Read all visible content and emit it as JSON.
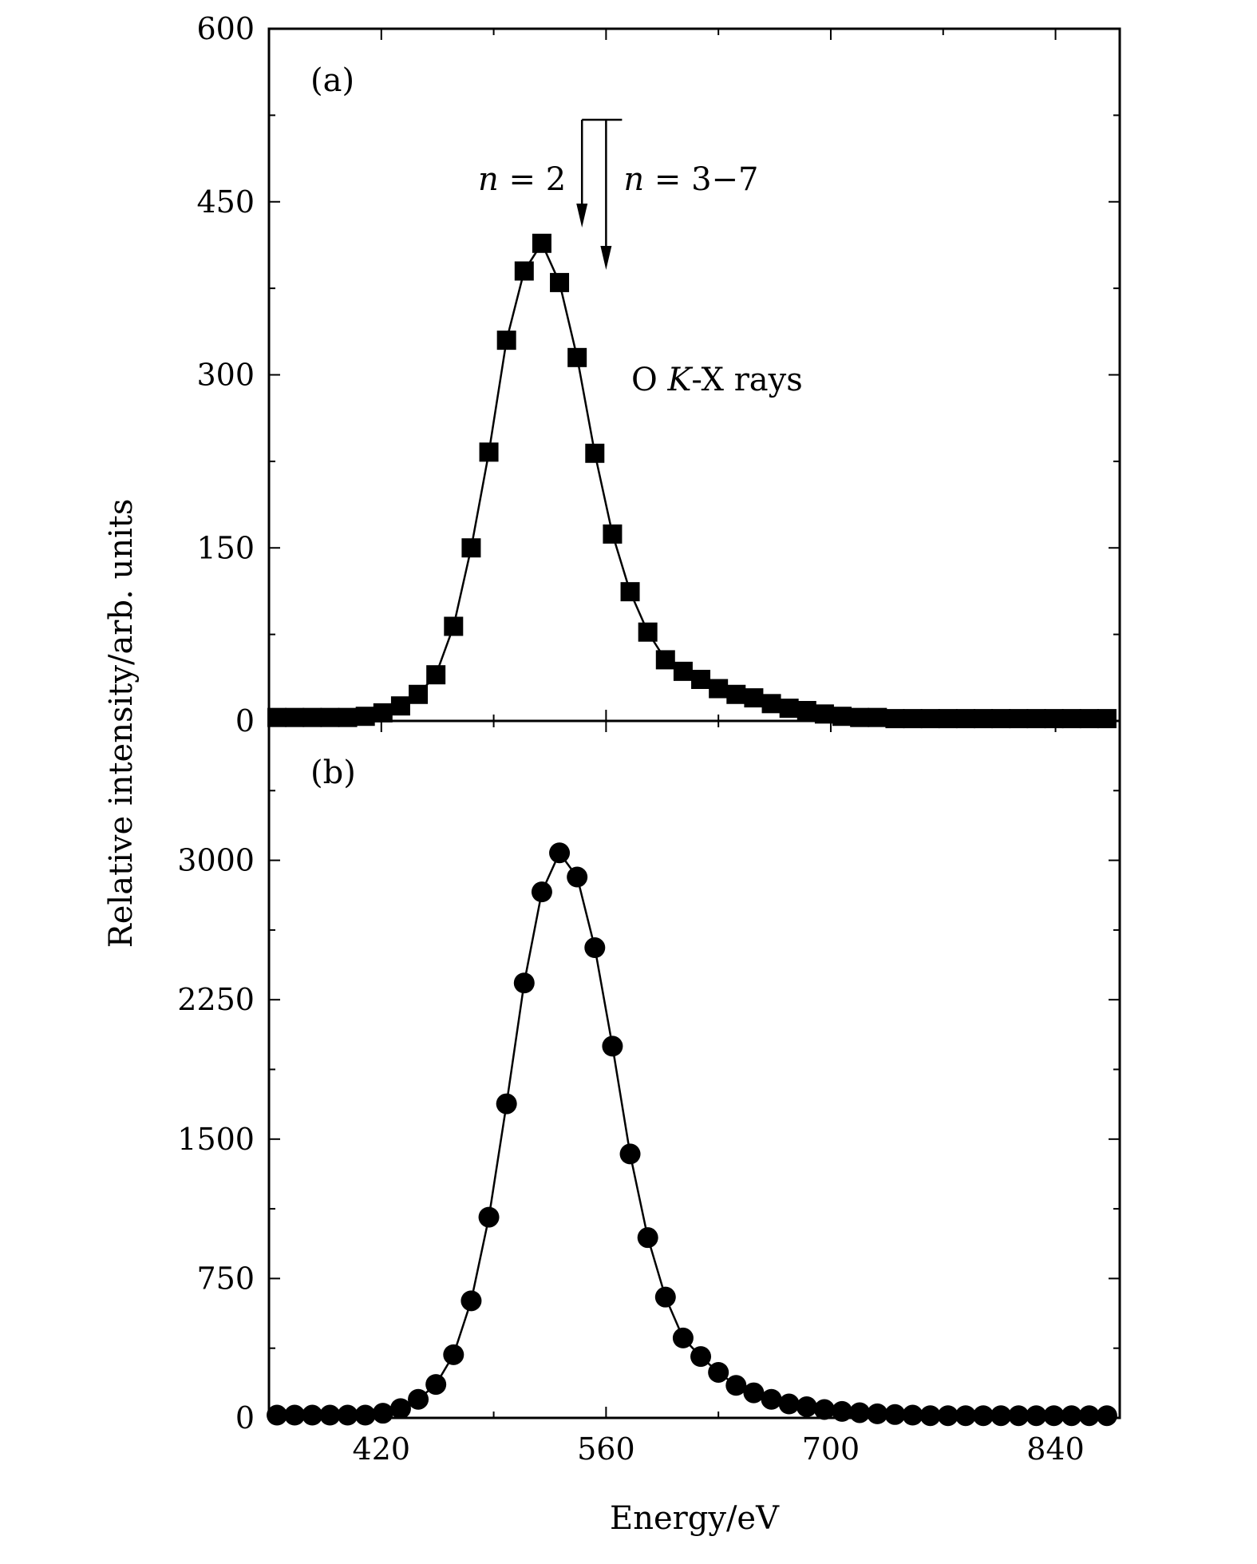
{
  "chart_data": [
    {
      "type": "line",
      "panel_label": "(a)",
      "annotation": "O K-X rays",
      "marker": "square",
      "arrow_labels": [
        "n = 2",
        "n = 3−7"
      ],
      "arrow_targets_x": [
        545,
        560
      ],
      "xlim": [
        350,
        880
      ],
      "ylim": [
        0,
        600
      ],
      "yticks": [
        0,
        150,
        300,
        450,
        600
      ],
      "ylabel": "Relative intensity/arb. units",
      "x": [
        355,
        366,
        377,
        388,
        399,
        410,
        421,
        432,
        443,
        454,
        465,
        476,
        487,
        498,
        509,
        520,
        531,
        542,
        553,
        564,
        575,
        586,
        597,
        608,
        619,
        630,
        641,
        652,
        663,
        674,
        685,
        696,
        707,
        718,
        729,
        740,
        751,
        762,
        773,
        784,
        795,
        806,
        817,
        828,
        839,
        850,
        861,
        872
      ],
      "y": [
        3,
        3,
        3,
        3,
        3,
        4,
        7,
        13,
        23,
        40,
        82,
        150,
        233,
        330,
        390,
        414,
        380,
        315,
        232,
        162,
        112,
        77,
        53,
        43,
        36,
        28,
        23,
        20,
        15,
        11,
        9,
        6,
        4,
        3,
        3,
        2,
        2,
        2,
        2,
        2,
        2,
        2,
        2,
        2,
        2,
        2,
        2,
        2
      ]
    },
    {
      "type": "line",
      "panel_label": "(b)",
      "marker": "circle",
      "xlim": [
        350,
        880
      ],
      "ylim": [
        0,
        3750
      ],
      "yticks": [
        0,
        750,
        1500,
        2250,
        3000
      ],
      "xticks": [
        420,
        560,
        700,
        840
      ],
      "xlabel": "Energy/eV",
      "x": [
        355,
        366,
        377,
        388,
        399,
        410,
        421,
        432,
        443,
        454,
        465,
        476,
        487,
        498,
        509,
        520,
        531,
        542,
        553,
        564,
        575,
        586,
        597,
        608,
        619,
        630,
        641,
        652,
        663,
        674,
        685,
        696,
        707,
        718,
        729,
        740,
        751,
        762,
        773,
        784,
        795,
        806,
        817,
        828,
        839,
        850,
        861,
        872
      ],
      "y": [
        15,
        15,
        15,
        15,
        15,
        15,
        25,
        50,
        100,
        180,
        340,
        630,
        1080,
        1690,
        2340,
        2830,
        3040,
        2910,
        2530,
        2000,
        1420,
        970,
        650,
        430,
        330,
        245,
        175,
        135,
        100,
        75,
        60,
        45,
        35,
        28,
        22,
        18,
        15,
        12,
        12,
        12,
        12,
        12,
        12,
        12,
        12,
        12,
        12,
        12
      ]
    }
  ]
}
